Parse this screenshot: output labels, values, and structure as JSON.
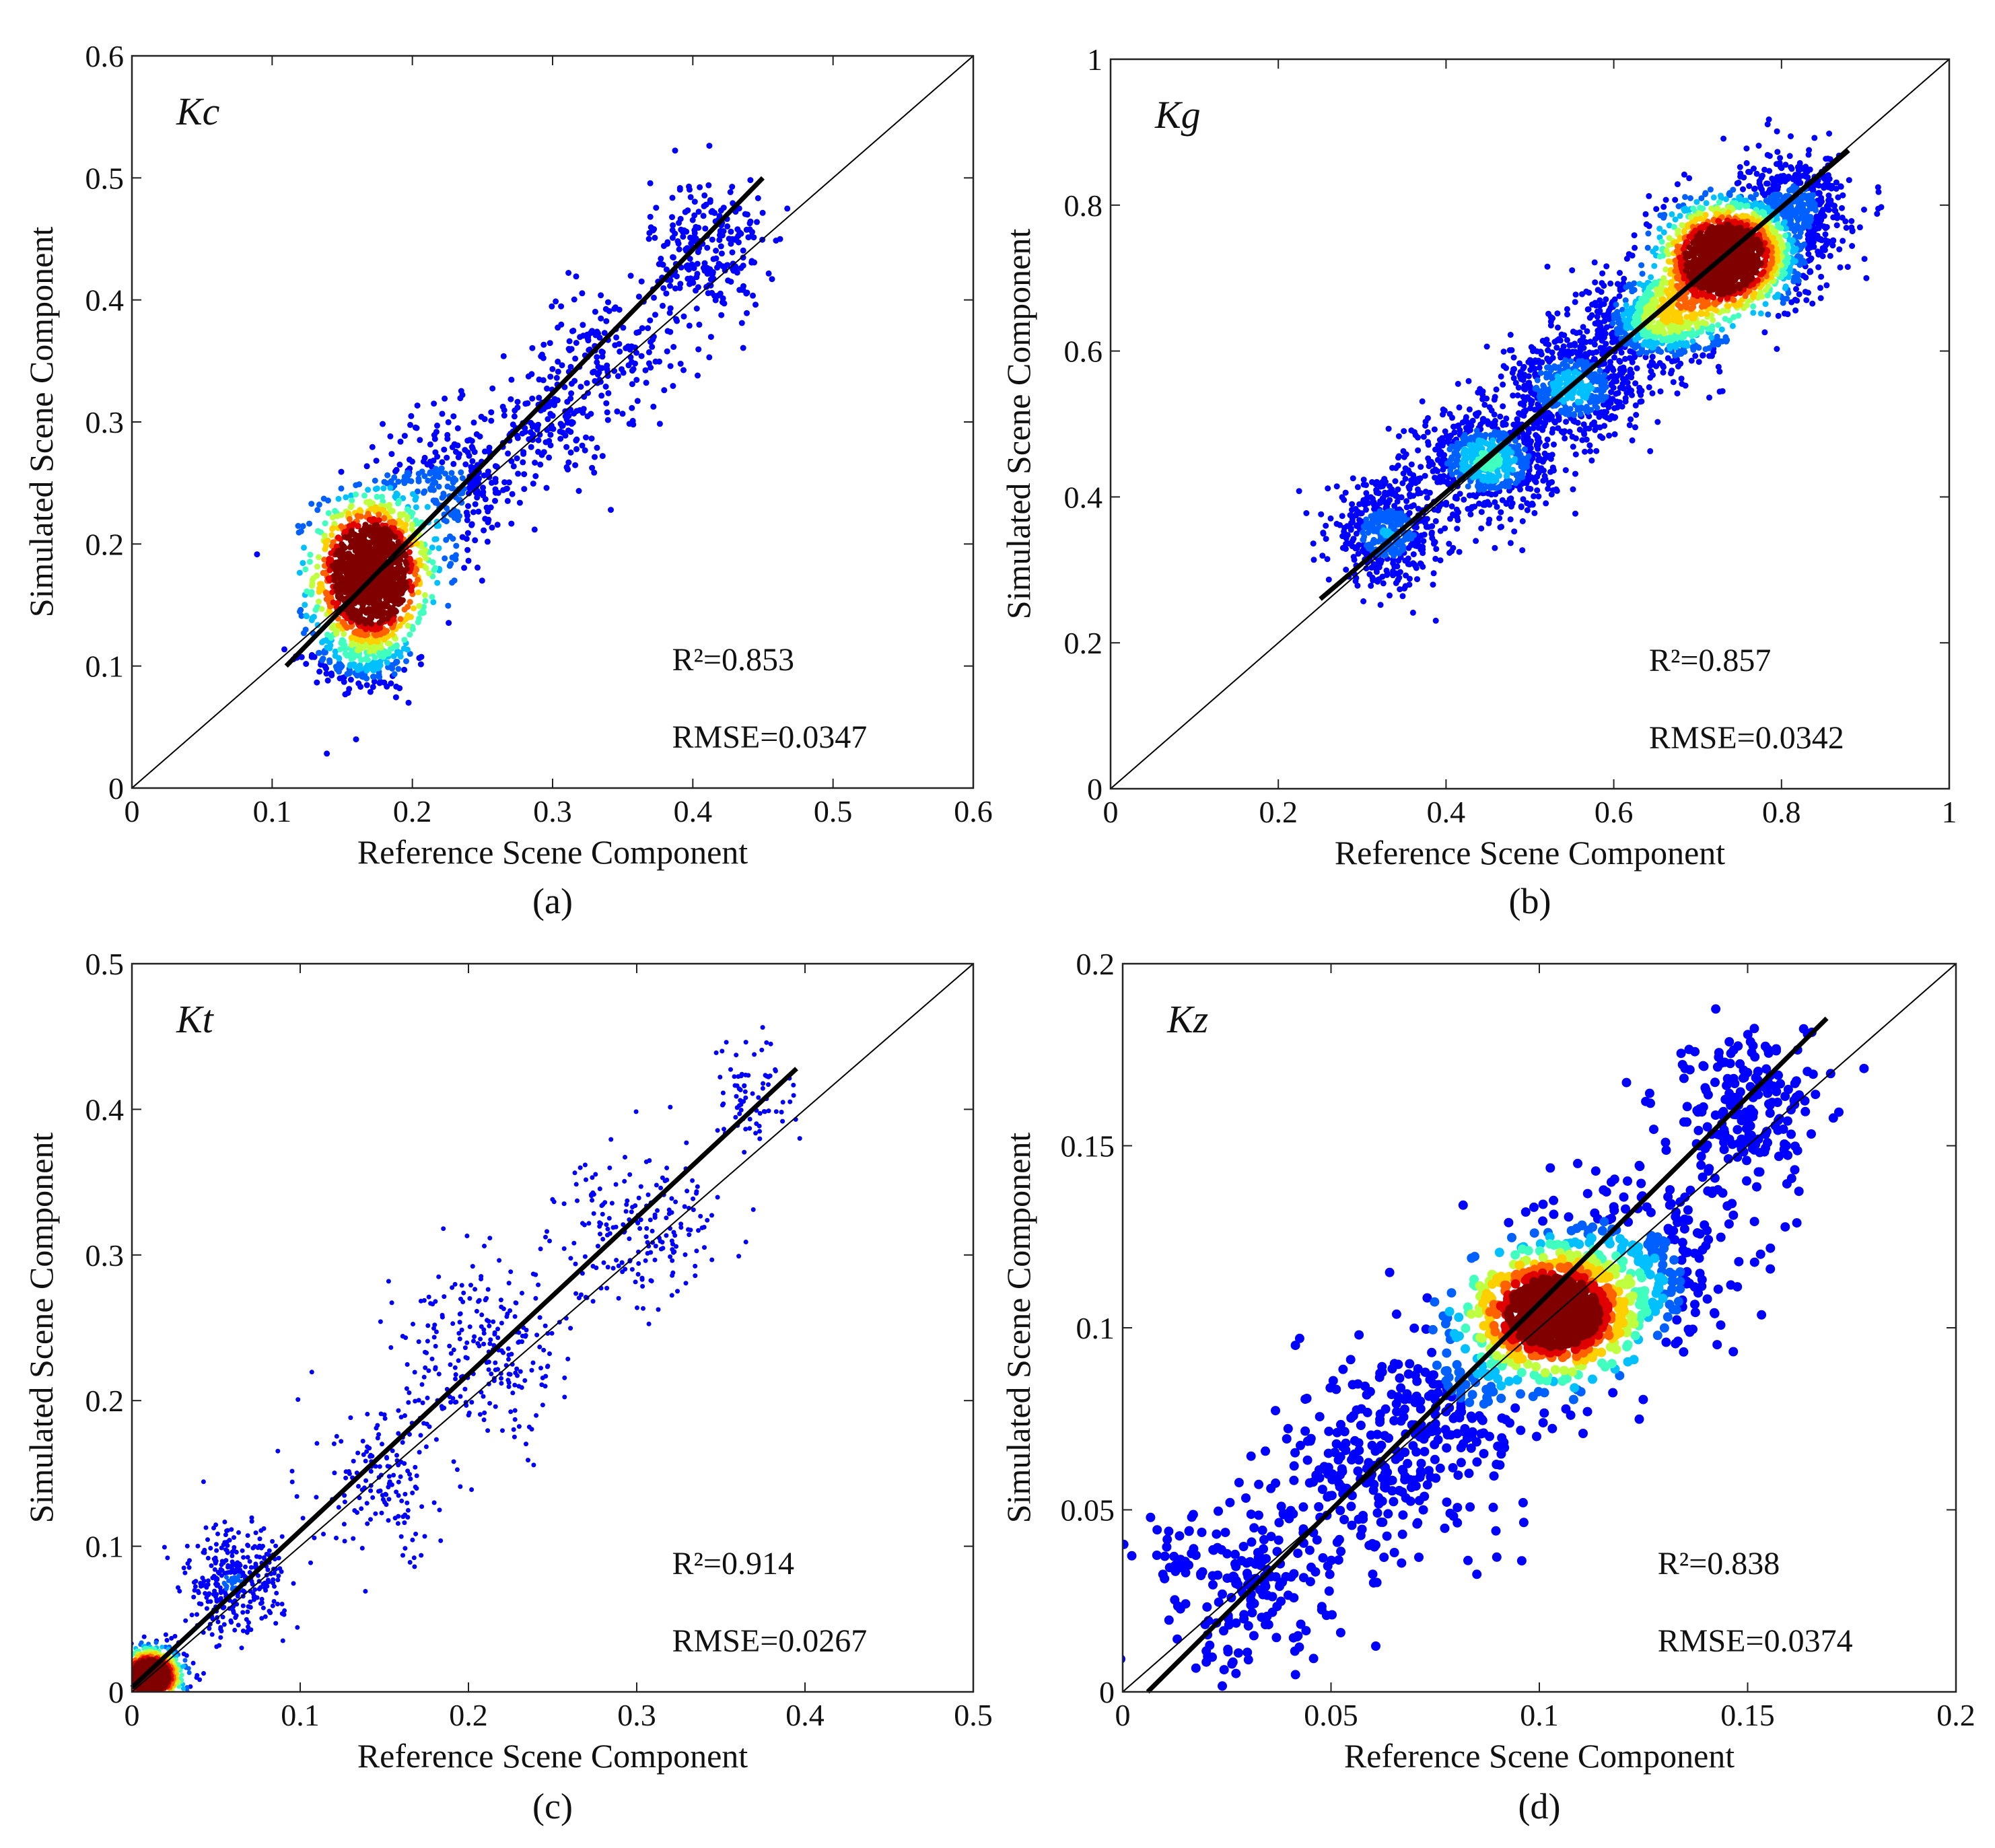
{
  "chart_data": [
    {
      "type": "scatter",
      "id": "a",
      "caption": "(a)",
      "title": "Kc",
      "xlabel": "Reference Scene Component",
      "ylabel": "Simulated Scene Component",
      "xlim": [
        0,
        0.6
      ],
      "ylim": [
        0,
        0.6
      ],
      "xticks": [
        0,
        0.1,
        0.2,
        0.3,
        0.4,
        0.5,
        0.6
      ],
      "yticks": [
        0,
        0.1,
        0.2,
        0.3,
        0.4,
        0.5,
        0.6
      ],
      "xtick_labels": [
        "0",
        "0.1",
        "0.2",
        "0.3",
        "0.4",
        "0.5",
        "0.6"
      ],
      "ytick_labels": [
        "0",
        "0.1",
        "0.2",
        "0.3",
        "0.4",
        "0.5",
        "0.6"
      ],
      "r2_label": "R²=0.853",
      "rmse_label": "RMSE=0.0347",
      "r2": 0.853,
      "rmse": 0.0347,
      "one_to_one_line": [
        [
          0,
          0
        ],
        [
          0.6,
          0.6
        ]
      ],
      "fit_line": [
        [
          0.11,
          0.1
        ],
        [
          0.45,
          0.5
        ]
      ],
      "point_clusters": [
        {
          "x": 0.17,
          "y": 0.175,
          "sx": 0.02,
          "sy": 0.035,
          "n": 900
        },
        {
          "x": 0.165,
          "y": 0.11,
          "sx": 0.018,
          "sy": 0.015,
          "n": 250
        },
        {
          "x": 0.23,
          "y": 0.25,
          "sx": 0.025,
          "sy": 0.03,
          "n": 300
        },
        {
          "x": 0.3,
          "y": 0.3,
          "sx": 0.02,
          "sy": 0.025,
          "n": 150
        },
        {
          "x": 0.34,
          "y": 0.36,
          "sx": 0.025,
          "sy": 0.025,
          "n": 150
        },
        {
          "x": 0.41,
          "y": 0.44,
          "sx": 0.02,
          "sy": 0.03,
          "n": 250
        }
      ],
      "density_core": {
        "x": 0.17,
        "y": 0.175,
        "sx": 0.015,
        "sy": 0.02
      },
      "marker_size": 4.5
    },
    {
      "type": "scatter",
      "id": "b",
      "caption": "(b)",
      "title": "Kg",
      "xlabel": "Reference Scene Component",
      "ylabel": "Simulated Scene Component",
      "xlim": [
        0,
        1
      ],
      "ylim": [
        0,
        1
      ],
      "xticks": [
        0,
        0.2,
        0.4,
        0.6,
        0.8,
        1
      ],
      "yticks": [
        0,
        0.2,
        0.4,
        0.6,
        0.8,
        1
      ],
      "xtick_labels": [
        "0",
        "0.2",
        "0.4",
        "0.6",
        "0.8",
        "1"
      ],
      "ytick_labels": [
        "0",
        "0.2",
        "0.4",
        "0.6",
        "0.8",
        "1"
      ],
      "r2_label": "R²=0.857",
      "rmse_label": "RMSE=0.0342",
      "r2": 0.857,
      "rmse": 0.0342,
      "one_to_one_line": [
        [
          0,
          0
        ],
        [
          1,
          1
        ]
      ],
      "fit_line": [
        [
          0.25,
          0.26
        ],
        [
          0.88,
          0.875
        ]
      ],
      "point_clusters": [
        {
          "x": 0.33,
          "y": 0.35,
          "sx": 0.035,
          "sy": 0.035,
          "n": 500
        },
        {
          "x": 0.45,
          "y": 0.45,
          "sx": 0.04,
          "sy": 0.035,
          "n": 700
        },
        {
          "x": 0.55,
          "y": 0.55,
          "sx": 0.04,
          "sy": 0.035,
          "n": 600
        },
        {
          "x": 0.65,
          "y": 0.64,
          "sx": 0.04,
          "sy": 0.035,
          "n": 700
        },
        {
          "x": 0.75,
          "y": 0.74,
          "sx": 0.045,
          "sy": 0.04,
          "n": 1200
        },
        {
          "x": 0.82,
          "y": 0.8,
          "sx": 0.03,
          "sy": 0.035,
          "n": 400
        }
      ],
      "density_core": {
        "x": 0.72,
        "y": 0.715,
        "sx": 0.022,
        "sy": 0.025
      },
      "marker_size": 4.5
    },
    {
      "type": "scatter",
      "id": "c",
      "caption": "(c)",
      "title": "Kt",
      "xlabel": "Reference Scene Component",
      "ylabel": "Simulated Scene Component",
      "xlim": [
        0,
        0.5
      ],
      "ylim": [
        0,
        0.5
      ],
      "xticks": [
        0,
        0.1,
        0.2,
        0.3,
        0.4,
        0.5
      ],
      "yticks": [
        0,
        0.1,
        0.2,
        0.3,
        0.4,
        0.5
      ],
      "xtick_labels": [
        "0",
        "0.1",
        "0.2",
        "0.3",
        "0.4",
        "0.5"
      ],
      "ytick_labels": [
        "0",
        "0.1",
        "0.2",
        "0.3",
        "0.4",
        "0.5"
      ],
      "r2_label": "R²=0.914",
      "rmse_label": "RMSE=0.0267",
      "r2": 0.914,
      "rmse": 0.0267,
      "one_to_one_line": [
        [
          0,
          0
        ],
        [
          0.5,
          0.5
        ]
      ],
      "fit_line": [
        [
          0,
          0.003
        ],
        [
          0.395,
          0.428
        ]
      ],
      "point_clusters": [
        {
          "x": 0.012,
          "y": 0.012,
          "sx": 0.01,
          "sy": 0.01,
          "n": 800
        },
        {
          "x": 0.06,
          "y": 0.075,
          "sx": 0.015,
          "sy": 0.018,
          "n": 350
        },
        {
          "x": 0.15,
          "y": 0.14,
          "sx": 0.02,
          "sy": 0.025,
          "n": 150
        },
        {
          "x": 0.21,
          "y": 0.23,
          "sx": 0.025,
          "sy": 0.03,
          "n": 250
        },
        {
          "x": 0.3,
          "y": 0.32,
          "sx": 0.025,
          "sy": 0.025,
          "n": 200
        },
        {
          "x": 0.37,
          "y": 0.41,
          "sx": 0.012,
          "sy": 0.02,
          "n": 80
        }
      ],
      "density_core": {
        "x": 0.01,
        "y": 0.01,
        "sx": 0.006,
        "sy": 0.006
      },
      "marker_size": 3.5
    },
    {
      "type": "scatter",
      "id": "d",
      "caption": "(d)",
      "title": "Kz",
      "xlabel": "Reference Scene Component",
      "ylabel": "Simulated Scene Component",
      "xlim": [
        0,
        0.2
      ],
      "ylim": [
        0,
        0.2
      ],
      "xticks": [
        0,
        0.05,
        0.1,
        0.15,
        0.2
      ],
      "yticks": [
        0,
        0.05,
        0.1,
        0.15,
        0.2
      ],
      "xtick_labels": [
        "0",
        "0.05",
        "0.1",
        "0.15",
        "0.2"
      ],
      "ytick_labels": [
        "0",
        "0.05",
        "0.1",
        "0.15",
        "0.2"
      ],
      "r2_label": "R²=0.838",
      "rmse_label": "RMSE=0.0374",
      "r2": 0.838,
      "rmse": 0.0374,
      "one_to_one_line": [
        [
          0,
          0
        ],
        [
          0.2,
          0.2
        ]
      ],
      "fit_line": [
        [
          0.006,
          0
        ],
        [
          0.169,
          0.185
        ]
      ],
      "point_clusters": [
        {
          "x": 0.03,
          "y": 0.03,
          "sx": 0.012,
          "sy": 0.012,
          "n": 200
        },
        {
          "x": 0.06,
          "y": 0.06,
          "sx": 0.012,
          "sy": 0.012,
          "n": 200
        },
        {
          "x": 0.08,
          "y": 0.08,
          "sx": 0.012,
          "sy": 0.012,
          "n": 200
        },
        {
          "x": 0.105,
          "y": 0.105,
          "sx": 0.012,
          "sy": 0.01,
          "n": 400
        },
        {
          "x": 0.125,
          "y": 0.12,
          "sx": 0.012,
          "sy": 0.012,
          "n": 250
        },
        {
          "x": 0.15,
          "y": 0.16,
          "sx": 0.01,
          "sy": 0.01,
          "n": 200
        }
      ],
      "density_core": {
        "x": 0.103,
        "y": 0.104,
        "sx": 0.007,
        "sy": 0.006
      },
      "marker_size": 7
    }
  ],
  "colormap": [
    "#00008f",
    "#0000ff",
    "#0060ff",
    "#00c0ff",
    "#40ffbf",
    "#bfff40",
    "#ffd000",
    "#ff6000",
    "#e00000",
    "#800000"
  ]
}
